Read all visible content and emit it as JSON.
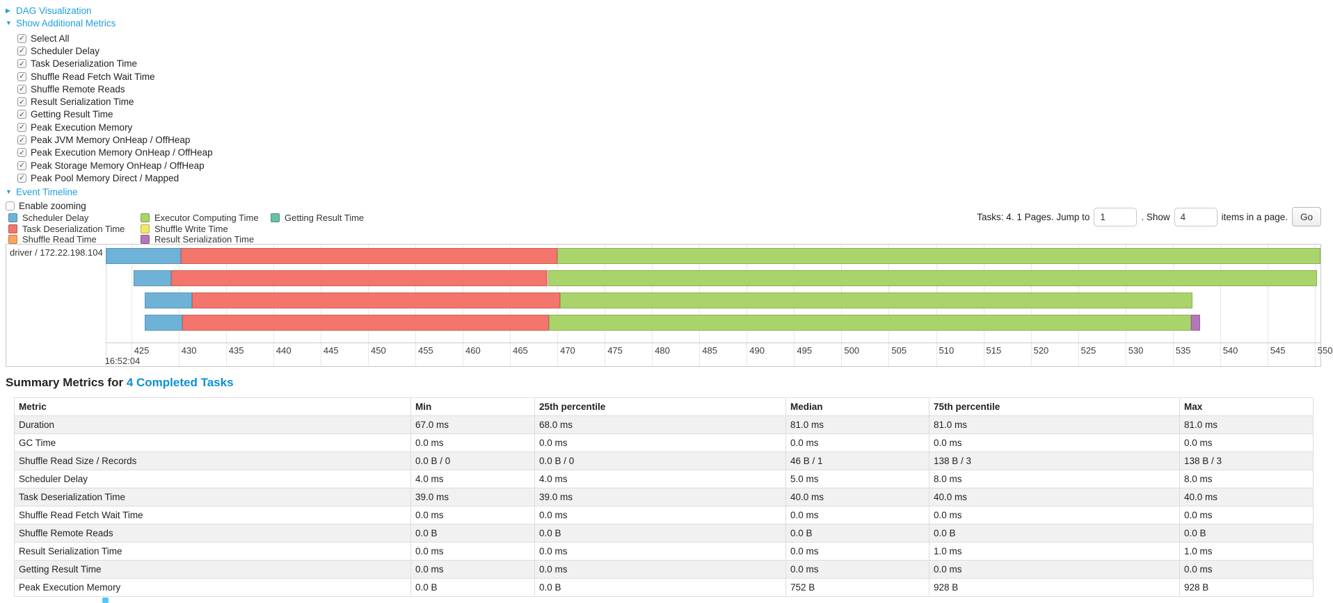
{
  "colors": {
    "scheduler-delay": "#6fb2d8",
    "task-deserialization-time": "#f4756b",
    "shuffle-read-time": "#f9a65a",
    "executor-computing-time": "#a9d46b",
    "shuffle-write-time": "#f2e768",
    "result-serialization-time": "#b577b8",
    "getting-result-time": "#68c2a3",
    "section-link": "#1ca0dc",
    "title-link": "#0c90d3"
  },
  "sections": {
    "dag": {
      "label": "DAG Visualization",
      "arrow": "▶",
      "expanded": false
    },
    "metrics": {
      "label": "Show Additional Metrics",
      "arrow": "▼",
      "expanded": true
    },
    "timeline": {
      "label": "Event Timeline",
      "arrow": "▼",
      "expanded": true
    }
  },
  "metric_checkboxes": [
    {
      "label": "Select All",
      "checked": true
    },
    {
      "label": "Scheduler Delay",
      "checked": true
    },
    {
      "label": "Task Deserialization Time",
      "checked": true
    },
    {
      "label": "Shuffle Read Fetch Wait Time",
      "checked": true
    },
    {
      "label": "Shuffle Remote Reads",
      "checked": true
    },
    {
      "label": "Result Serialization Time",
      "checked": true
    },
    {
      "label": "Getting Result Time",
      "checked": true
    },
    {
      "label": "Peak Execution Memory",
      "checked": true
    },
    {
      "label": "Peak JVM Memory OnHeap / OffHeap",
      "checked": true
    },
    {
      "label": "Peak Execution Memory OnHeap / OffHeap",
      "checked": true
    },
    {
      "label": "Peak Storage Memory OnHeap / OffHeap",
      "checked": true
    },
    {
      "label": "Peak Pool Memory Direct / Mapped",
      "checked": true
    }
  ],
  "enable_zooming": {
    "label": "Enable zooming",
    "checked": false
  },
  "legend": {
    "columns": [
      [
        {
          "key": "scheduler-delay",
          "label": "Scheduler Delay"
        },
        {
          "key": "task-deserialization-time",
          "label": "Task Deserialization Time"
        },
        {
          "key": "shuffle-read-time",
          "label": "Shuffle Read Time"
        }
      ],
      [
        {
          "key": "executor-computing-time",
          "label": "Executor Computing Time"
        },
        {
          "key": "shuffle-write-time",
          "label": "Shuffle Write Time"
        },
        {
          "key": "result-serialization-time",
          "label": "Result Serialization Time"
        }
      ],
      [
        {
          "key": "getting-result-time",
          "label": "Getting Result Time"
        }
      ]
    ]
  },
  "pagination": {
    "summary": "Tasks: 4. 1 Pages. Jump to",
    "jump_value": "1",
    "between": ". Show",
    "show_value": "4",
    "suffix": "items in a page.",
    "go_label": "Go"
  },
  "chart_data": {
    "type": "timeline",
    "executor_label": "driver / 172.22.198.104",
    "x_axis": {
      "time_min": 422.3,
      "time_max": 550.6,
      "tick_start": 425,
      "tick_end": 550,
      "tick_step": 5,
      "unit": "ms",
      "datetime_label": "16:52:04"
    },
    "tasks": [
      {
        "segments": [
          {
            "metric": "scheduler-delay",
            "start": 422.3,
            "end": 430.2
          },
          {
            "metric": "task-deserialization-time",
            "start": 430.2,
            "end": 470.0
          },
          {
            "metric": "executor-computing-time",
            "start": 470.0,
            "end": 551.0
          }
        ]
      },
      {
        "segments": [
          {
            "metric": "scheduler-delay",
            "start": 425.2,
            "end": 429.2
          },
          {
            "metric": "task-deserialization-time",
            "start": 429.2,
            "end": 469.0
          },
          {
            "metric": "executor-computing-time",
            "start": 469.0,
            "end": 550.2
          }
        ]
      },
      {
        "segments": [
          {
            "metric": "scheduler-delay",
            "start": 426.4,
            "end": 431.4
          },
          {
            "metric": "task-deserialization-time",
            "start": 431.4,
            "end": 470.3
          },
          {
            "metric": "executor-computing-time",
            "start": 470.3,
            "end": 537.1
          }
        ]
      },
      {
        "segments": [
          {
            "metric": "scheduler-delay",
            "start": 426.4,
            "end": 430.4
          },
          {
            "metric": "task-deserialization-time",
            "start": 430.4,
            "end": 469.1
          },
          {
            "metric": "executor-computing-time",
            "start": 469.1,
            "end": 536.9
          },
          {
            "metric": "result-serialization-time",
            "start": 536.9,
            "end": 537.9
          }
        ]
      }
    ]
  },
  "summary": {
    "title_prefix": "Summary Metrics for ",
    "title_link": "4 Completed Tasks",
    "headers": [
      "Metric",
      "Min",
      "25th percentile",
      "Median",
      "75th percentile",
      "Max"
    ],
    "rows": [
      [
        "Duration",
        "67.0 ms",
        "68.0 ms",
        "81.0 ms",
        "81.0 ms",
        "81.0 ms"
      ],
      [
        "GC Time",
        "0.0 ms",
        "0.0 ms",
        "0.0 ms",
        "0.0 ms",
        "0.0 ms"
      ],
      [
        "Shuffle Read Size / Records",
        "0.0 B / 0",
        "0.0 B / 0",
        "46 B / 1",
        "138 B / 3",
        "138 B / 3"
      ],
      [
        "Scheduler Delay",
        "4.0 ms",
        "4.0 ms",
        "5.0 ms",
        "8.0 ms",
        "8.0 ms"
      ],
      [
        "Task Deserialization Time",
        "39.0 ms",
        "39.0 ms",
        "40.0 ms",
        "40.0 ms",
        "40.0 ms"
      ],
      [
        "Shuffle Read Fetch Wait Time",
        "0.0 ms",
        "0.0 ms",
        "0.0 ms",
        "0.0 ms",
        "0.0 ms"
      ],
      [
        "Shuffle Remote Reads",
        "0.0 B",
        "0.0 B",
        "0.0 B",
        "0.0 B",
        "0.0 B"
      ],
      [
        "Result Serialization Time",
        "0.0 ms",
        "0.0 ms",
        "0.0 ms",
        "1.0 ms",
        "1.0 ms"
      ],
      [
        "Getting Result Time",
        "0.0 ms",
        "0.0 ms",
        "0.0 ms",
        "0.0 ms",
        "0.0 ms"
      ],
      [
        "Peak Execution Memory",
        "0.0 B",
        "0.0 B",
        "752 B",
        "928 B",
        "928 B"
      ]
    ]
  }
}
